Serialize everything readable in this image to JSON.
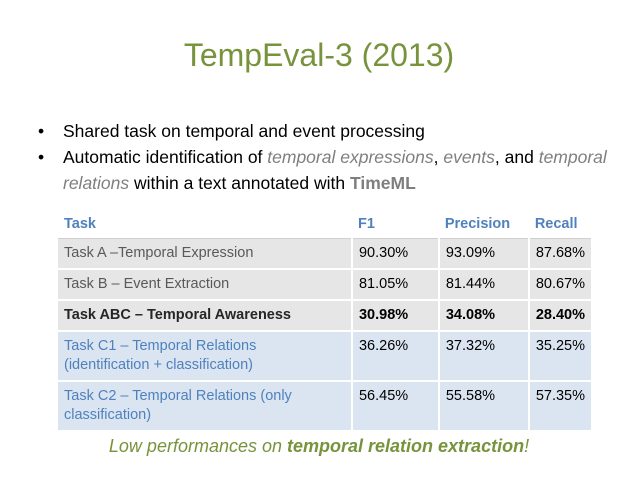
{
  "title": "TempEval-3 (2013)",
  "bullets": {
    "b1": "Shared task on temporal and event processing",
    "b2_a": "Automatic identification of ",
    "b2_em1": "temporal expressions",
    "b2_b": ", ",
    "b2_em2": "events",
    "b2_c": ", and ",
    "b2_em3": "temporal relations",
    "b2_d": " within a text annotated with ",
    "b2_strong": "TimeML",
    "marker": "•"
  },
  "table": {
    "headers": [
      "Task",
      "F1",
      "Precision",
      "Recall"
    ],
    "rows": [
      [
        "Task A –Temporal Expression",
        "90.30%",
        "93.09%",
        "87.68%"
      ],
      [
        "Task B – Event Extraction",
        "81.05%",
        "81.44%",
        "80.67%"
      ],
      [
        "Task ABC – Temporal Awareness",
        "30.98%",
        "34.08%",
        "28.40%"
      ],
      [
        "Task C1 – Temporal Relations (identification + classification)",
        "36.26%",
        "37.32%",
        "35.25%"
      ],
      [
        "Task C2 – Temporal Relations (only classification)",
        "56.45%",
        "55.58%",
        "57.35%"
      ]
    ]
  },
  "footer": {
    "a": "Low performances on ",
    "b": "temporal relation extraction",
    "c": "!"
  },
  "colors": {
    "title": "#77933c",
    "header": "#4f81bd",
    "row_gray": "#e6e6e6",
    "row_blue": "#dbe5f1"
  }
}
